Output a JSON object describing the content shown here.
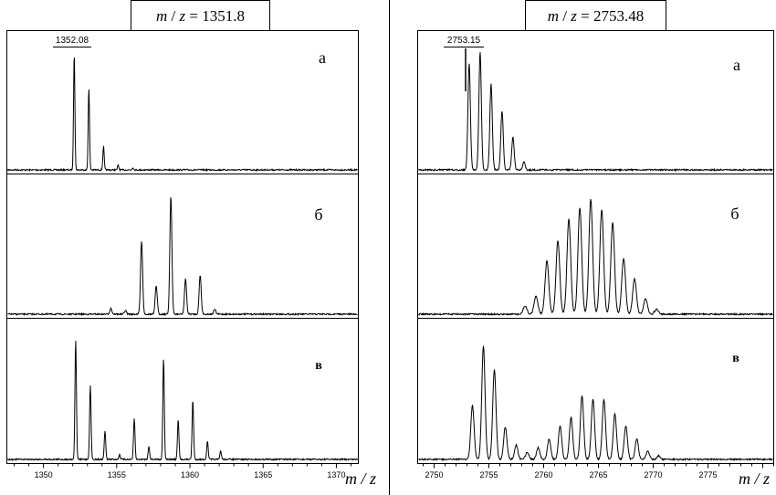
{
  "chart_data": [
    {
      "type": "line",
      "title": "m / z = 1351.8",
      "title_value": "1351.8",
      "xlabel": "m / z",
      "xlim": [
        1347.5,
        1371.5
      ],
      "x_ticks": [
        1350,
        1355,
        1360,
        1365,
        1370
      ],
      "peak_label": "1352.08",
      "peak_label_x": 1352.08,
      "series": [
        {
          "name": "а",
          "label_style": "normal",
          "peaks": [
            [
              1352.1,
              1.0
            ],
            [
              1353.1,
              0.7
            ],
            [
              1354.1,
              0.2
            ],
            [
              1355.1,
              0.04
            ],
            [
              1356.1,
              0.02
            ]
          ]
        },
        {
          "name": "б",
          "label_style": "normal",
          "peaks": [
            [
              1354.6,
              0.05
            ],
            [
              1355.6,
              0.03
            ],
            [
              1356.7,
              0.62
            ],
            [
              1357.7,
              0.24
            ],
            [
              1358.7,
              1.0
            ],
            [
              1359.7,
              0.3
            ],
            [
              1360.7,
              0.33
            ],
            [
              1361.7,
              0.04
            ]
          ]
        },
        {
          "name": "в",
          "label_style": "bold",
          "peaks": [
            [
              1352.2,
              1.0
            ],
            [
              1353.2,
              0.62
            ],
            [
              1354.2,
              0.24
            ],
            [
              1355.2,
              0.04
            ],
            [
              1356.2,
              0.34
            ],
            [
              1357.2,
              0.11
            ],
            [
              1358.2,
              0.85
            ],
            [
              1359.2,
              0.33
            ],
            [
              1360.2,
              0.5
            ],
            [
              1361.2,
              0.15
            ],
            [
              1362.1,
              0.07
            ]
          ]
        }
      ]
    },
    {
      "type": "line",
      "title": "m / z = 2753.48",
      "title_value": "2753.48",
      "xlabel": "m / z",
      "xlim": [
        2748.5,
        2781
      ],
      "x_ticks": [
        2750,
        2755,
        2760,
        2765,
        2770,
        2775
      ],
      "peak_label": "2753.15",
      "peak_label_x": 2753.15,
      "series": [
        {
          "name": "а",
          "label_style": "normal",
          "peaks": [
            [
              2753.2,
              0.9
            ],
            [
              2754.2,
              1.0
            ],
            [
              2755.2,
              0.73
            ],
            [
              2756.2,
              0.5
            ],
            [
              2757.2,
              0.28
            ],
            [
              2758.2,
              0.07
            ]
          ]
        },
        {
          "name": "б",
          "label_style": "normal",
          "peaks": [
            [
              2758.3,
              0.07
            ],
            [
              2759.3,
              0.15
            ],
            [
              2760.3,
              0.45
            ],
            [
              2761.3,
              0.62
            ],
            [
              2762.3,
              0.8
            ],
            [
              2763.3,
              0.9
            ],
            [
              2764.3,
              0.97
            ],
            [
              2765.3,
              0.88
            ],
            [
              2766.3,
              0.77
            ],
            [
              2767.3,
              0.47
            ],
            [
              2768.3,
              0.3
            ],
            [
              2769.3,
              0.13
            ],
            [
              2770.3,
              0.04
            ]
          ]
        },
        {
          "name": "в",
          "label_style": "bold",
          "peaks": [
            [
              2753.5,
              0.45
            ],
            [
              2754.5,
              0.95
            ],
            [
              2755.5,
              0.75
            ],
            [
              2756.5,
              0.27
            ],
            [
              2757.5,
              0.12
            ],
            [
              2758.5,
              0.06
            ],
            [
              2759.5,
              0.1
            ],
            [
              2760.5,
              0.17
            ],
            [
              2761.5,
              0.28
            ],
            [
              2762.5,
              0.35
            ],
            [
              2763.5,
              0.53
            ],
            [
              2764.5,
              0.5
            ],
            [
              2765.5,
              0.5
            ],
            [
              2766.5,
              0.38
            ],
            [
              2767.5,
              0.28
            ],
            [
              2768.5,
              0.17
            ],
            [
              2769.5,
              0.07
            ],
            [
              2770.5,
              0.03
            ]
          ]
        }
      ]
    }
  ]
}
